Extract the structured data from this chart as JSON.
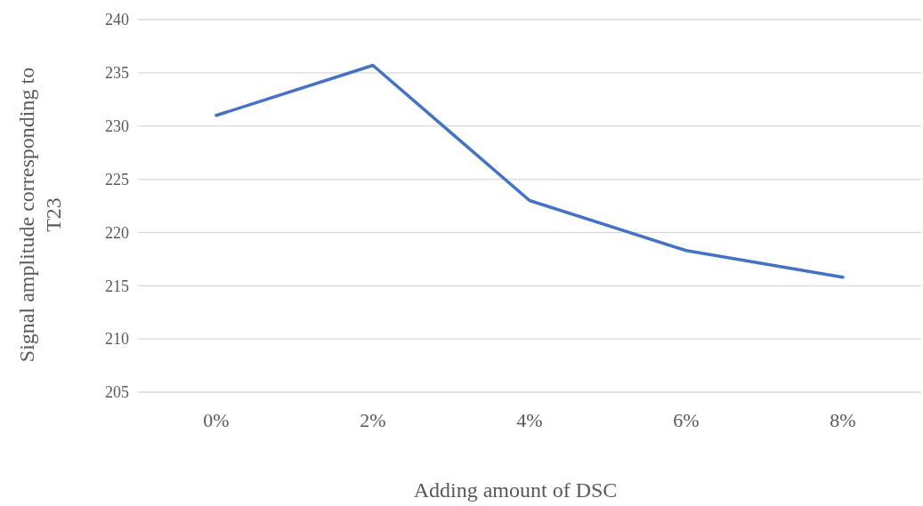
{
  "chart_data": {
    "type": "line",
    "xlabel": "Adding amount of DSC",
    "ylabel": "Signal amplitude corresponding to T23",
    "categories": [
      "0%",
      "2%",
      "4%",
      "6%",
      "8%"
    ],
    "series": [
      {
        "color": "#4472c4",
        "values": [
          231.0,
          235.7,
          223.0,
          218.3,
          215.8
        ]
      }
    ],
    "ylim": [
      205,
      240
    ],
    "yticks": [
      205,
      210,
      215,
      220,
      225,
      230,
      235,
      240
    ],
    "grid": "y",
    "marker": "none",
    "line_style": "solid"
  }
}
